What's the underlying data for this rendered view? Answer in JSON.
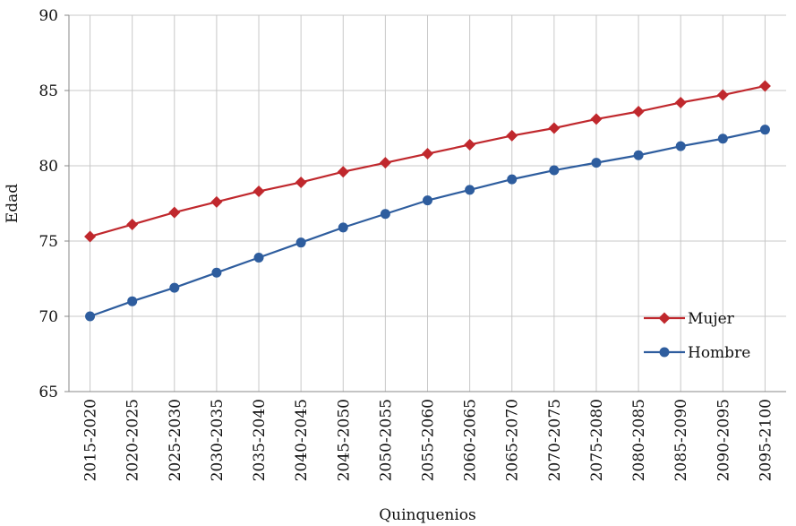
{
  "chart_data": {
    "type": "line",
    "title": "",
    "xlabel": "Quinquenios",
    "ylabel": "Edad",
    "ylim": [
      65,
      90
    ],
    "yticks": [
      65,
      70,
      75,
      80,
      85,
      90
    ],
    "grid": true,
    "legend_position": "bottom-right",
    "categories": [
      "2015-2020",
      "2020-2025",
      "2025-2030",
      "2030-2035",
      "2035-2040",
      "2040-2045",
      "2045-2050",
      "2050-2055",
      "2055-2060",
      "2060-2065",
      "2065-2070",
      "2070-2075",
      "2075-2080",
      "2080-2085",
      "2085-2090",
      "2090-2095",
      "2095-2100"
    ],
    "series": [
      {
        "name": "Mujer",
        "color": "#c0282d",
        "marker": "diamond",
        "values": [
          75.3,
          76.1,
          76.9,
          77.6,
          78.3,
          78.9,
          79.6,
          80.2,
          80.8,
          81.4,
          82.0,
          82.5,
          83.1,
          83.6,
          84.2,
          84.7,
          85.3
        ]
      },
      {
        "name": "Hombre",
        "color": "#2e5d9e",
        "marker": "circle",
        "values": [
          70.0,
          71.0,
          71.9,
          72.9,
          73.9,
          74.9,
          75.9,
          76.8,
          77.7,
          78.4,
          79.1,
          79.7,
          80.2,
          80.7,
          81.3,
          81.8,
          82.4
        ]
      }
    ]
  }
}
